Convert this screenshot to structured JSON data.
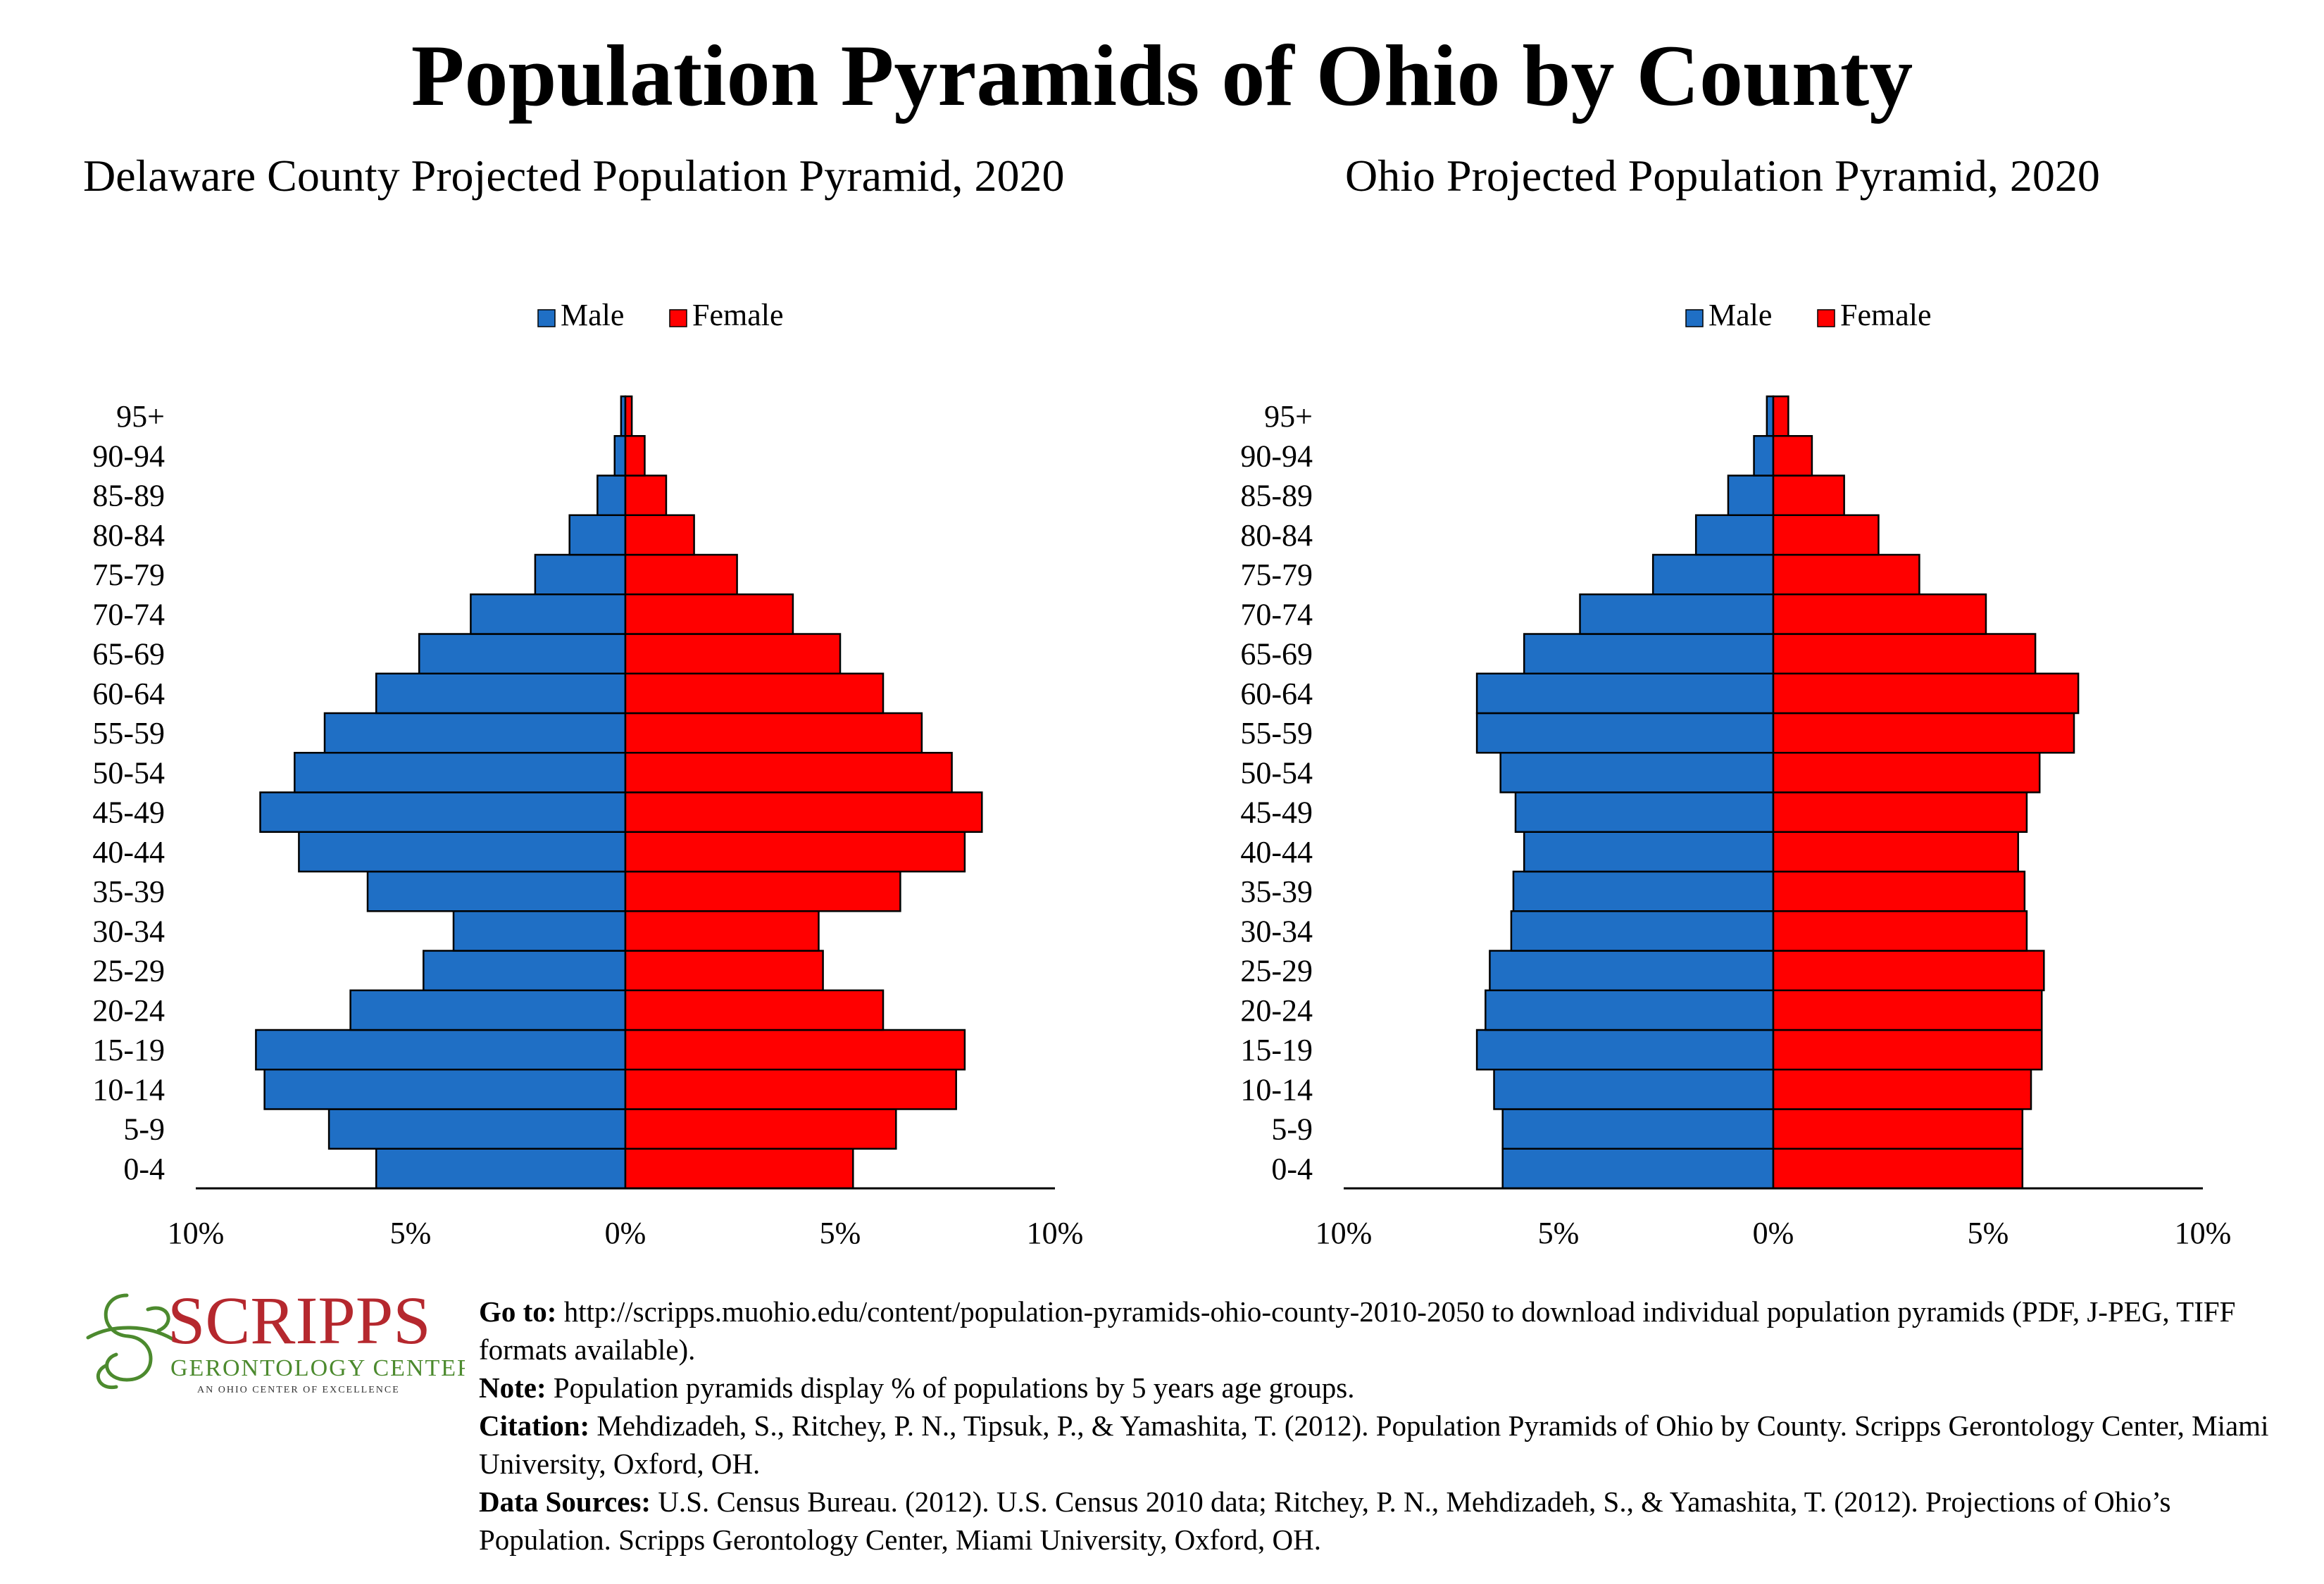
{
  "title": "Population Pyramids of Ohio by County",
  "legend": {
    "male": "Male",
    "female": "Female"
  },
  "colors": {
    "male": "#1F6FC5",
    "female": "#FF0000",
    "logo": "#B5282E",
    "logo_accent": "#4C8A2E"
  },
  "logo": {
    "name": "SCRIPPS",
    "line2": "GERONTOLOGY CENTER",
    "line3": "AN OHIO CENTER OF EXCELLENCE"
  },
  "footer": {
    "goto_label": "Go to:",
    "goto_text": " http://scripps.muohio.edu/content/population-pyramids-ohio-county-2010-2050 to download individual population pyramids (PDF, J-PEG, TIFF formats available).",
    "note_label": "Note:",
    "note_text": " Population pyramids display % of populations by 5 years age groups.",
    "citation_label": "Citation:",
    "citation_text": " Mehdizadeh, S., Ritchey, P. N., Tipsuk, P., & Yamashita, T. (2012). Population Pyramids of Ohio by County. Scripps Gerontology Center, Miami University, Oxford, OH.",
    "sources_label": "Data Sources:",
    "sources_text": " U.S. Census Bureau. (2012). U.S. Census 2010 data; Ritchey, P. N., Mehdizadeh, S., & Yamashita, T. (2012). Projections of Ohio’s Population. Scripps Gerontology Center, Miami University, Oxford, OH."
  },
  "chart_data": [
    {
      "type": "bar",
      "orientation": "horizontal-pyramid",
      "title": "Delaware County Projected Population Pyramid, 2020",
      "categories": [
        "0-4",
        "5-9",
        "10-14",
        "15-19",
        "20-24",
        "25-29",
        "30-34",
        "35-39",
        "40-44",
        "45-49",
        "50-54",
        "55-59",
        "60-64",
        "65-69",
        "70-74",
        "75-79",
        "80-84",
        "85-89",
        "90-94",
        "95+"
      ],
      "series": [
        {
          "name": "Male",
          "values": [
            5.8,
            6.9,
            8.4,
            8.6,
            6.4,
            4.7,
            4.0,
            6.0,
            7.6,
            8.5,
            7.7,
            7.0,
            5.8,
            4.8,
            3.6,
            2.1,
            1.3,
            0.65,
            0.25,
            0.1
          ]
        },
        {
          "name": "Female",
          "values": [
            5.3,
            6.3,
            7.7,
            7.9,
            6.0,
            4.6,
            4.5,
            6.4,
            7.9,
            8.3,
            7.6,
            6.9,
            6.0,
            5.0,
            3.9,
            2.6,
            1.6,
            0.95,
            0.45,
            0.15
          ]
        }
      ],
      "xlim": [
        -10,
        10
      ],
      "xticks": [
        "10%",
        "5%",
        "0%",
        "5%",
        "10%"
      ],
      "legend_position": "top"
    },
    {
      "type": "bar",
      "orientation": "horizontal-pyramid",
      "title": "Ohio Projected Population Pyramid, 2020",
      "categories": [
        "0-4",
        "5-9",
        "10-14",
        "15-19",
        "20-24",
        "25-29",
        "30-34",
        "35-39",
        "40-44",
        "45-49",
        "50-54",
        "55-59",
        "60-64",
        "65-69",
        "70-74",
        "75-79",
        "80-84",
        "85-89",
        "90-94",
        "95+"
      ],
      "series": [
        {
          "name": "Male",
          "values": [
            6.3,
            6.3,
            6.5,
            6.9,
            6.7,
            6.6,
            6.1,
            6.05,
            5.8,
            6.0,
            6.35,
            6.9,
            6.9,
            5.8,
            4.5,
            2.8,
            1.8,
            1.05,
            0.45,
            0.15
          ]
        },
        {
          "name": "Female",
          "values": [
            5.8,
            5.8,
            6.0,
            6.25,
            6.25,
            6.3,
            5.9,
            5.85,
            5.7,
            5.9,
            6.2,
            7.0,
            7.1,
            6.1,
            4.95,
            3.4,
            2.45,
            1.65,
            0.9,
            0.35
          ]
        }
      ],
      "xlim": [
        -10,
        10
      ],
      "xticks": [
        "10%",
        "5%",
        "0%",
        "5%",
        "10%"
      ],
      "legend_position": "top"
    }
  ]
}
